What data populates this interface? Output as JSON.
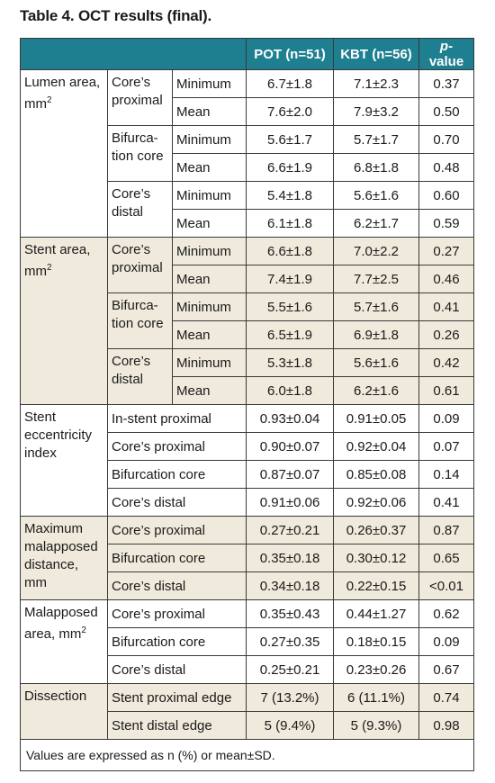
{
  "caption": "Table 4. OCT results (final).",
  "header": {
    "col_pot": "POT (n=51)",
    "col_kbt": "KBT (n=56)",
    "col_p_italic": "p",
    "col_p_rest": "-value"
  },
  "groups": [
    {
      "label": "Lumen area, mm",
      "sup": "2",
      "shade": "white",
      "rows": [
        {
          "sub": "Core’s proximal",
          "metric": "Minimum",
          "pot": "6.7±1.8",
          "kbt": "7.1±2.3",
          "p": "0.37"
        },
        {
          "sub": "",
          "metric": "Mean",
          "pot": "7.6±2.0",
          "kbt": "7.9±3.2",
          "p": "0.50"
        },
        {
          "sub": "Bifurca-tion core",
          "metric": "Minimum",
          "pot": "5.6±1.7",
          "kbt": "5.7±1.7",
          "p": "0.70"
        },
        {
          "sub": "",
          "metric": "Mean",
          "pot": "6.6±1.9",
          "kbt": "6.8±1.8",
          "p": "0.48"
        },
        {
          "sub": "Core’s distal",
          "metric": "Minimum",
          "pot": "5.4±1.8",
          "kbt": "5.6±1.6",
          "p": "0.60"
        },
        {
          "sub": "",
          "metric": "Mean",
          "pot": "6.1±1.8",
          "kbt": "6.2±1.7",
          "p": "0.59"
        }
      ]
    },
    {
      "label": "Stent area, mm",
      "sup": "2",
      "shade": "beige",
      "rows": [
        {
          "sub": "Core’s proximal",
          "metric": "Minimum",
          "pot": "6.6±1.8",
          "kbt": "7.0±2.2",
          "p": "0.27"
        },
        {
          "sub": "",
          "metric": "Mean",
          "pot": "7.4±1.9",
          "kbt": "7.7±2.5",
          "p": "0.46"
        },
        {
          "sub": "Bifurca-tion core",
          "metric": "Minimum",
          "pot": "5.5±1.6",
          "kbt": "5.7±1.6",
          "p": "0.41"
        },
        {
          "sub": "",
          "metric": "Mean",
          "pot": "6.5±1.9",
          "kbt": "6.9±1.8",
          "p": "0.26"
        },
        {
          "sub": "Core’s distal",
          "metric": "Minimum",
          "pot": "5.3±1.8",
          "kbt": "5.6±1.6",
          "p": "0.42"
        },
        {
          "sub": "",
          "metric": "Mean",
          "pot": "6.0±1.8",
          "kbt": "6.2±1.6",
          "p": "0.61"
        }
      ]
    },
    {
      "label": "Stent eccentricity index",
      "sup": "",
      "shade": "white",
      "rows": [
        {
          "sub": "In-stent proximal",
          "pot": "0.93±0.04",
          "kbt": "0.91±0.05",
          "p": "0.09"
        },
        {
          "sub": "Core’s proximal",
          "pot": "0.90±0.07",
          "kbt": "0.92±0.04",
          "p": "0.07"
        },
        {
          "sub": "Bifurcation core",
          "pot": "0.87±0.07",
          "kbt": "0.85±0.08",
          "p": "0.14"
        },
        {
          "sub": "Core’s distal",
          "pot": "0.91±0.06",
          "kbt": "0.92±0.06",
          "p": "0.41"
        }
      ]
    },
    {
      "label": "Maximum malapposed distance, mm",
      "sup": "",
      "shade": "beige",
      "rows": [
        {
          "sub": "Core’s proximal",
          "pot": "0.27±0.21",
          "kbt": "0.26±0.37",
          "p": "0.87"
        },
        {
          "sub": "Bifurcation core",
          "pot": "0.35±0.18",
          "kbt": "0.30±0.12",
          "p": "0.65"
        },
        {
          "sub": "Core’s distal",
          "pot": "0.34±0.18",
          "kbt": "0.22±0.15",
          "p": "<0.01"
        }
      ]
    },
    {
      "label": "Malapposed area, mm",
      "sup": "2",
      "shade": "white",
      "rows": [
        {
          "sub": "Core’s proximal",
          "pot": "0.35±0.43",
          "kbt": "0.44±1.27",
          "p": "0.62"
        },
        {
          "sub": "Bifurcation core",
          "pot": "0.27±0.35",
          "kbt": "0.18±0.15",
          "p": "0.09"
        },
        {
          "sub": "Core’s distal",
          "pot": "0.25±0.21",
          "kbt": "0.23±0.26",
          "p": "0.67"
        }
      ]
    },
    {
      "label": "Dissection",
      "sup": "",
      "shade": "beige",
      "rows": [
        {
          "sub": "Stent proximal edge",
          "pot": "7 (13.2%)",
          "kbt": "6 (11.1%)",
          "p": "0.74"
        },
        {
          "sub": "Stent distal edge",
          "pot": "5 (9.4%)",
          "kbt": "5 (9.3%)",
          "p": "0.98"
        }
      ]
    }
  ],
  "footnote": "Values are expressed as n (%) or mean±SD."
}
